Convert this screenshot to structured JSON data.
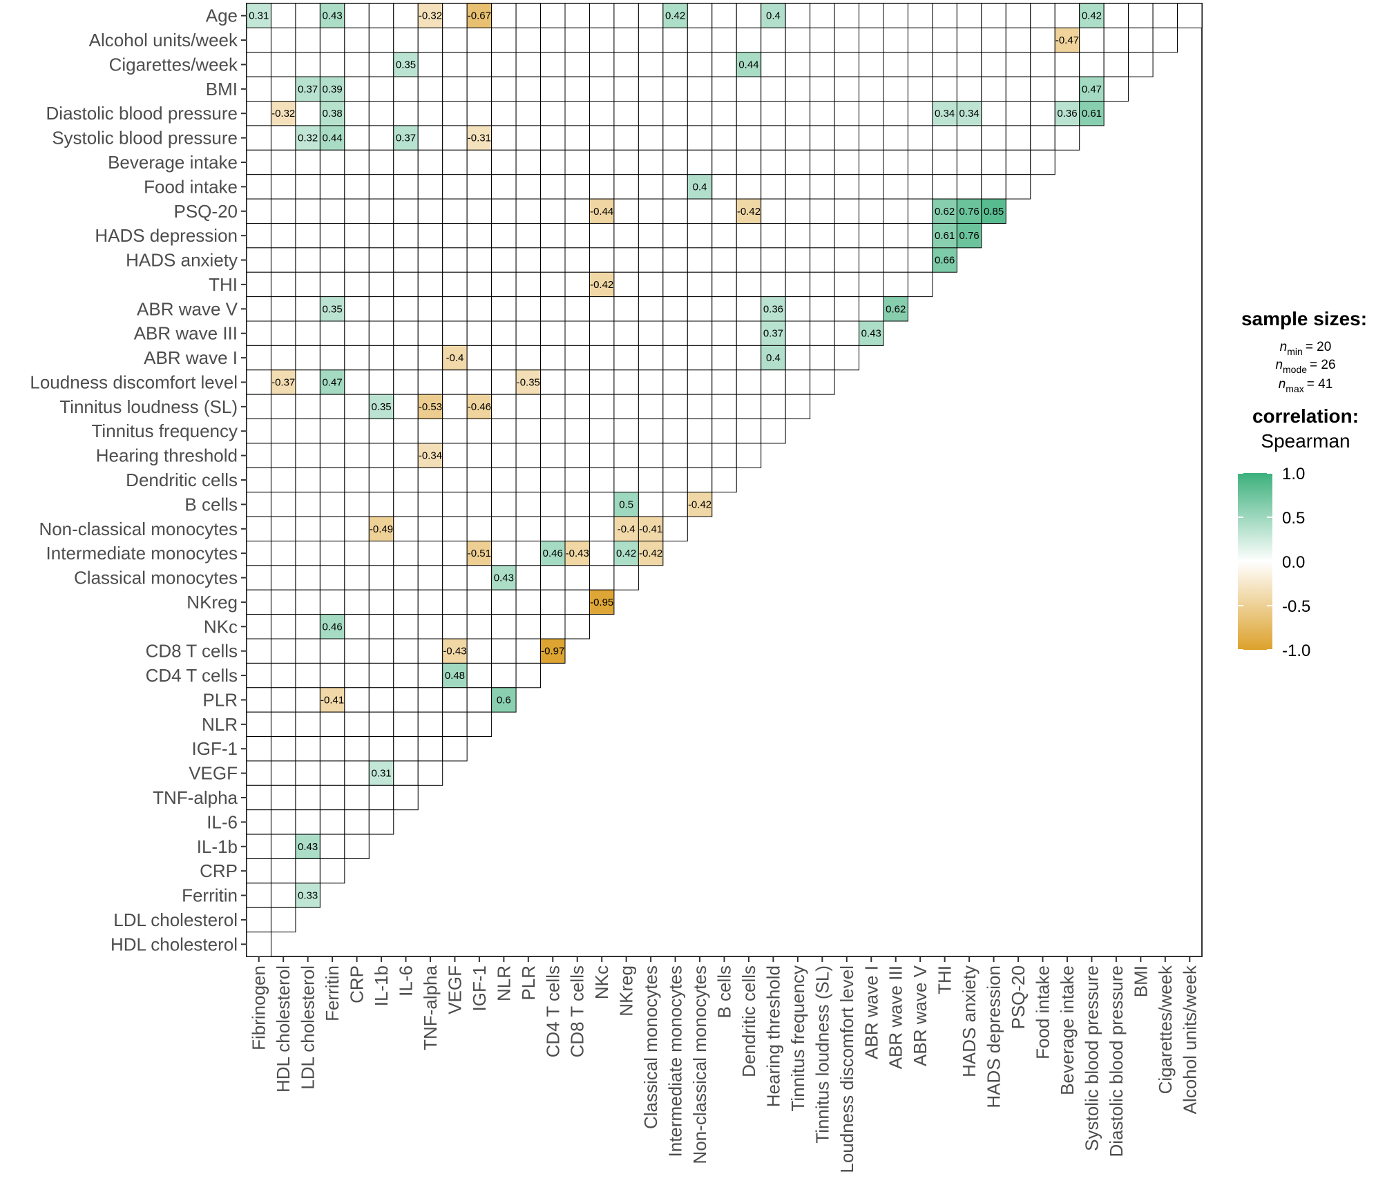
{
  "chart_data": {
    "type": "heatmap",
    "shape": "lower-triangle correlogram",
    "rows": [
      "Age",
      "Alcohol units/week",
      "Cigarettes/week",
      "BMI",
      "Diastolic blood pressure",
      "Systolic blood pressure",
      "Beverage intake",
      "Food intake",
      "PSQ-20",
      "HADS depression",
      "HADS anxiety",
      "THI",
      "ABR wave V",
      "ABR wave III",
      "ABR wave I",
      "Loudness discomfort level",
      "Tinnitus loudness (SL)",
      "Tinnitus frequency",
      "Hearing threshold",
      "Dendritic cells",
      "B cells",
      "Non-classical monocytes",
      "Intermediate monocytes",
      "Classical monocytes",
      "NKreg",
      "NKc",
      "CD8 T cells",
      "CD4 T cells",
      "PLR",
      "NLR",
      "IGF-1",
      "VEGF",
      "TNF-alpha",
      "IL-6",
      "IL-1b",
      "CRP",
      "Ferritin",
      "LDL cholesterol",
      "HDL cholesterol"
    ],
    "columns": [
      "Fibrinogen",
      "HDL cholesterol",
      "LDL cholesterol",
      "Ferritin",
      "CRP",
      "IL-1b",
      "IL-6",
      "TNF-alpha",
      "VEGF",
      "IGF-1",
      "NLR",
      "PLR",
      "CD4 T cells",
      "CD8 T cells",
      "NKc",
      "NKreg",
      "Classical monocytes",
      "Intermediate monocytes",
      "Non-classical monocytes",
      "B cells",
      "Dendritic cells",
      "Hearing threshold",
      "Tinnitus frequency",
      "Tinnitus loudness (SL)",
      "Loudness discomfort level",
      "ABR wave I",
      "ABR wave III",
      "ABR wave V",
      "THI",
      "HADS anxiety",
      "HADS depression",
      "PSQ-20",
      "Food intake",
      "Beverage intake",
      "Systolic blood pressure",
      "Diastolic blood pressure",
      "BMI",
      "Cigarettes/week",
      "Alcohol units/week"
    ],
    "cells": [
      {
        "row": 0,
        "col": 0,
        "value": 0.31,
        "label": "0.31"
      },
      {
        "row": 0,
        "col": 3,
        "value": 0.43,
        "label": "0.43"
      },
      {
        "row": 0,
        "col": 7,
        "value": -0.32,
        "label": "-0.32"
      },
      {
        "row": 0,
        "col": 9,
        "value": -0.67,
        "label": "-0.67"
      },
      {
        "row": 0,
        "col": 17,
        "value": 0.42,
        "label": "0.42"
      },
      {
        "row": 0,
        "col": 21,
        "value": 0.4,
        "label": "0.4"
      },
      {
        "row": 0,
        "col": 34,
        "value": 0.42,
        "label": "0.42"
      },
      {
        "row": 1,
        "col": 33,
        "value": -0.47,
        "label": "-0.47"
      },
      {
        "row": 2,
        "col": 6,
        "value": 0.35,
        "label": "0.35"
      },
      {
        "row": 2,
        "col": 20,
        "value": 0.44,
        "label": "0.44"
      },
      {
        "row": 3,
        "col": 2,
        "value": 0.37,
        "label": "0.37"
      },
      {
        "row": 3,
        "col": 3,
        "value": 0.39,
        "label": "0.39"
      },
      {
        "row": 3,
        "col": 34,
        "value": 0.47,
        "label": "0.47"
      },
      {
        "row": 4,
        "col": 1,
        "value": -0.32,
        "label": "-0.32"
      },
      {
        "row": 4,
        "col": 3,
        "value": 0.38,
        "label": "0.38"
      },
      {
        "row": 4,
        "col": 28,
        "value": 0.34,
        "label": "0.34"
      },
      {
        "row": 4,
        "col": 29,
        "value": 0.34,
        "label": "0.34"
      },
      {
        "row": 4,
        "col": 33,
        "value": 0.36,
        "label": "0.36"
      },
      {
        "row": 4,
        "col": 34,
        "value": 0.61,
        "label": "0.61"
      },
      {
        "row": 5,
        "col": 2,
        "value": 0.32,
        "label": "0.32"
      },
      {
        "row": 5,
        "col": 3,
        "value": 0.44,
        "label": "0.44"
      },
      {
        "row": 5,
        "col": 6,
        "value": 0.37,
        "label": "0.37"
      },
      {
        "row": 5,
        "col": 9,
        "value": -0.31,
        "label": "-0.31"
      },
      {
        "row": 7,
        "col": 18,
        "value": 0.4,
        "label": "0.4"
      },
      {
        "row": 8,
        "col": 14,
        "value": -0.44,
        "label": "-0.44"
      },
      {
        "row": 8,
        "col": 20,
        "value": -0.42,
        "label": "-0.42"
      },
      {
        "row": 8,
        "col": 28,
        "value": 0.62,
        "label": "0.62"
      },
      {
        "row": 8,
        "col": 29,
        "value": 0.76,
        "label": "0.76"
      },
      {
        "row": 8,
        "col": 30,
        "value": 0.85,
        "label": "0.85"
      },
      {
        "row": 9,
        "col": 28,
        "value": 0.61,
        "label": "0.61"
      },
      {
        "row": 9,
        "col": 29,
        "value": 0.76,
        "label": "0.76"
      },
      {
        "row": 10,
        "col": 28,
        "value": 0.66,
        "label": "0.66"
      },
      {
        "row": 11,
        "col": 14,
        "value": -0.42,
        "label": "-0.42"
      },
      {
        "row": 12,
        "col": 3,
        "value": 0.35,
        "label": "0.35"
      },
      {
        "row": 12,
        "col": 21,
        "value": 0.36,
        "label": "0.36"
      },
      {
        "row": 12,
        "col": 26,
        "value": 0.62,
        "label": "0.62"
      },
      {
        "row": 13,
        "col": 21,
        "value": 0.37,
        "label": "0.37"
      },
      {
        "row": 13,
        "col": 25,
        "value": 0.43,
        "label": "0.43"
      },
      {
        "row": 14,
        "col": 8,
        "value": -0.4,
        "label": "-0.4"
      },
      {
        "row": 14,
        "col": 21,
        "value": 0.4,
        "label": "0.4"
      },
      {
        "row": 15,
        "col": 1,
        "value": -0.37,
        "label": "-0.37"
      },
      {
        "row": 15,
        "col": 3,
        "value": 0.47,
        "label": "0.47"
      },
      {
        "row": 15,
        "col": 11,
        "value": -0.35,
        "label": "-0.35"
      },
      {
        "row": 16,
        "col": 5,
        "value": 0.35,
        "label": "0.35"
      },
      {
        "row": 16,
        "col": 7,
        "value": -0.53,
        "label": "-0.53"
      },
      {
        "row": 16,
        "col": 9,
        "value": -0.46,
        "label": "-0.46"
      },
      {
        "row": 18,
        "col": 7,
        "value": -0.34,
        "label": "-0.34"
      },
      {
        "row": 20,
        "col": 15,
        "value": 0.5,
        "label": "0.5"
      },
      {
        "row": 20,
        "col": 18,
        "value": -0.42,
        "label": "-0.42"
      },
      {
        "row": 21,
        "col": 5,
        "value": -0.49,
        "label": "-0.49"
      },
      {
        "row": 21,
        "col": 15,
        "value": -0.4,
        "label": "-0.4"
      },
      {
        "row": 21,
        "col": 16,
        "value": -0.41,
        "label": "-0.41"
      },
      {
        "row": 22,
        "col": 9,
        "value": -0.51,
        "label": "-0.51"
      },
      {
        "row": 22,
        "col": 12,
        "value": 0.46,
        "label": "0.46"
      },
      {
        "row": 22,
        "col": 13,
        "value": -0.43,
        "label": "-0.43"
      },
      {
        "row": 22,
        "col": 15,
        "value": 0.42,
        "label": "0.42"
      },
      {
        "row": 22,
        "col": 16,
        "value": -0.42,
        "label": "-0.42"
      },
      {
        "row": 23,
        "col": 10,
        "value": 0.43,
        "label": "0.43"
      },
      {
        "row": 24,
        "col": 14,
        "value": -0.95,
        "label": "-0.95"
      },
      {
        "row": 25,
        "col": 3,
        "value": 0.46,
        "label": "0.46"
      },
      {
        "row": 26,
        "col": 8,
        "value": -0.43,
        "label": "-0.43"
      },
      {
        "row": 26,
        "col": 12,
        "value": -0.97,
        "label": "-0.97"
      },
      {
        "row": 27,
        "col": 8,
        "value": 0.48,
        "label": "0.48"
      },
      {
        "row": 28,
        "col": 3,
        "value": -0.41,
        "label": "-0.41"
      },
      {
        "row": 28,
        "col": 10,
        "value": 0.6,
        "label": "0.6"
      },
      {
        "row": 31,
        "col": 5,
        "value": 0.31,
        "label": "0.31"
      },
      {
        "row": 34,
        "col": 2,
        "value": 0.43,
        "label": "0.43"
      },
      {
        "row": 36,
        "col": 2,
        "value": 0.33,
        "label": "0.33"
      }
    ],
    "legend": {
      "sample_sizes_title": "sample sizes:",
      "n_min_label": "min",
      "n_min_value": "= 20",
      "n_mode_label": "mode",
      "n_mode_value": "= 26",
      "n_max_label": "max",
      "n_max_value": "= 41",
      "n_symbol": "n",
      "correlation_title": "correlation:",
      "correlation_method": "Spearman",
      "scale_ticks": [
        "1.0",
        "0.5",
        "0.0",
        "-0.5",
        "-1.0"
      ],
      "scale_range": [
        -1,
        1
      ],
      "position": "right"
    },
    "colors": {
      "positive": "#3cb07c",
      "negative": "#dca12b",
      "zero": "#ffffff",
      "grid": "#000000",
      "axis_text": "#4d4d4d"
    }
  }
}
